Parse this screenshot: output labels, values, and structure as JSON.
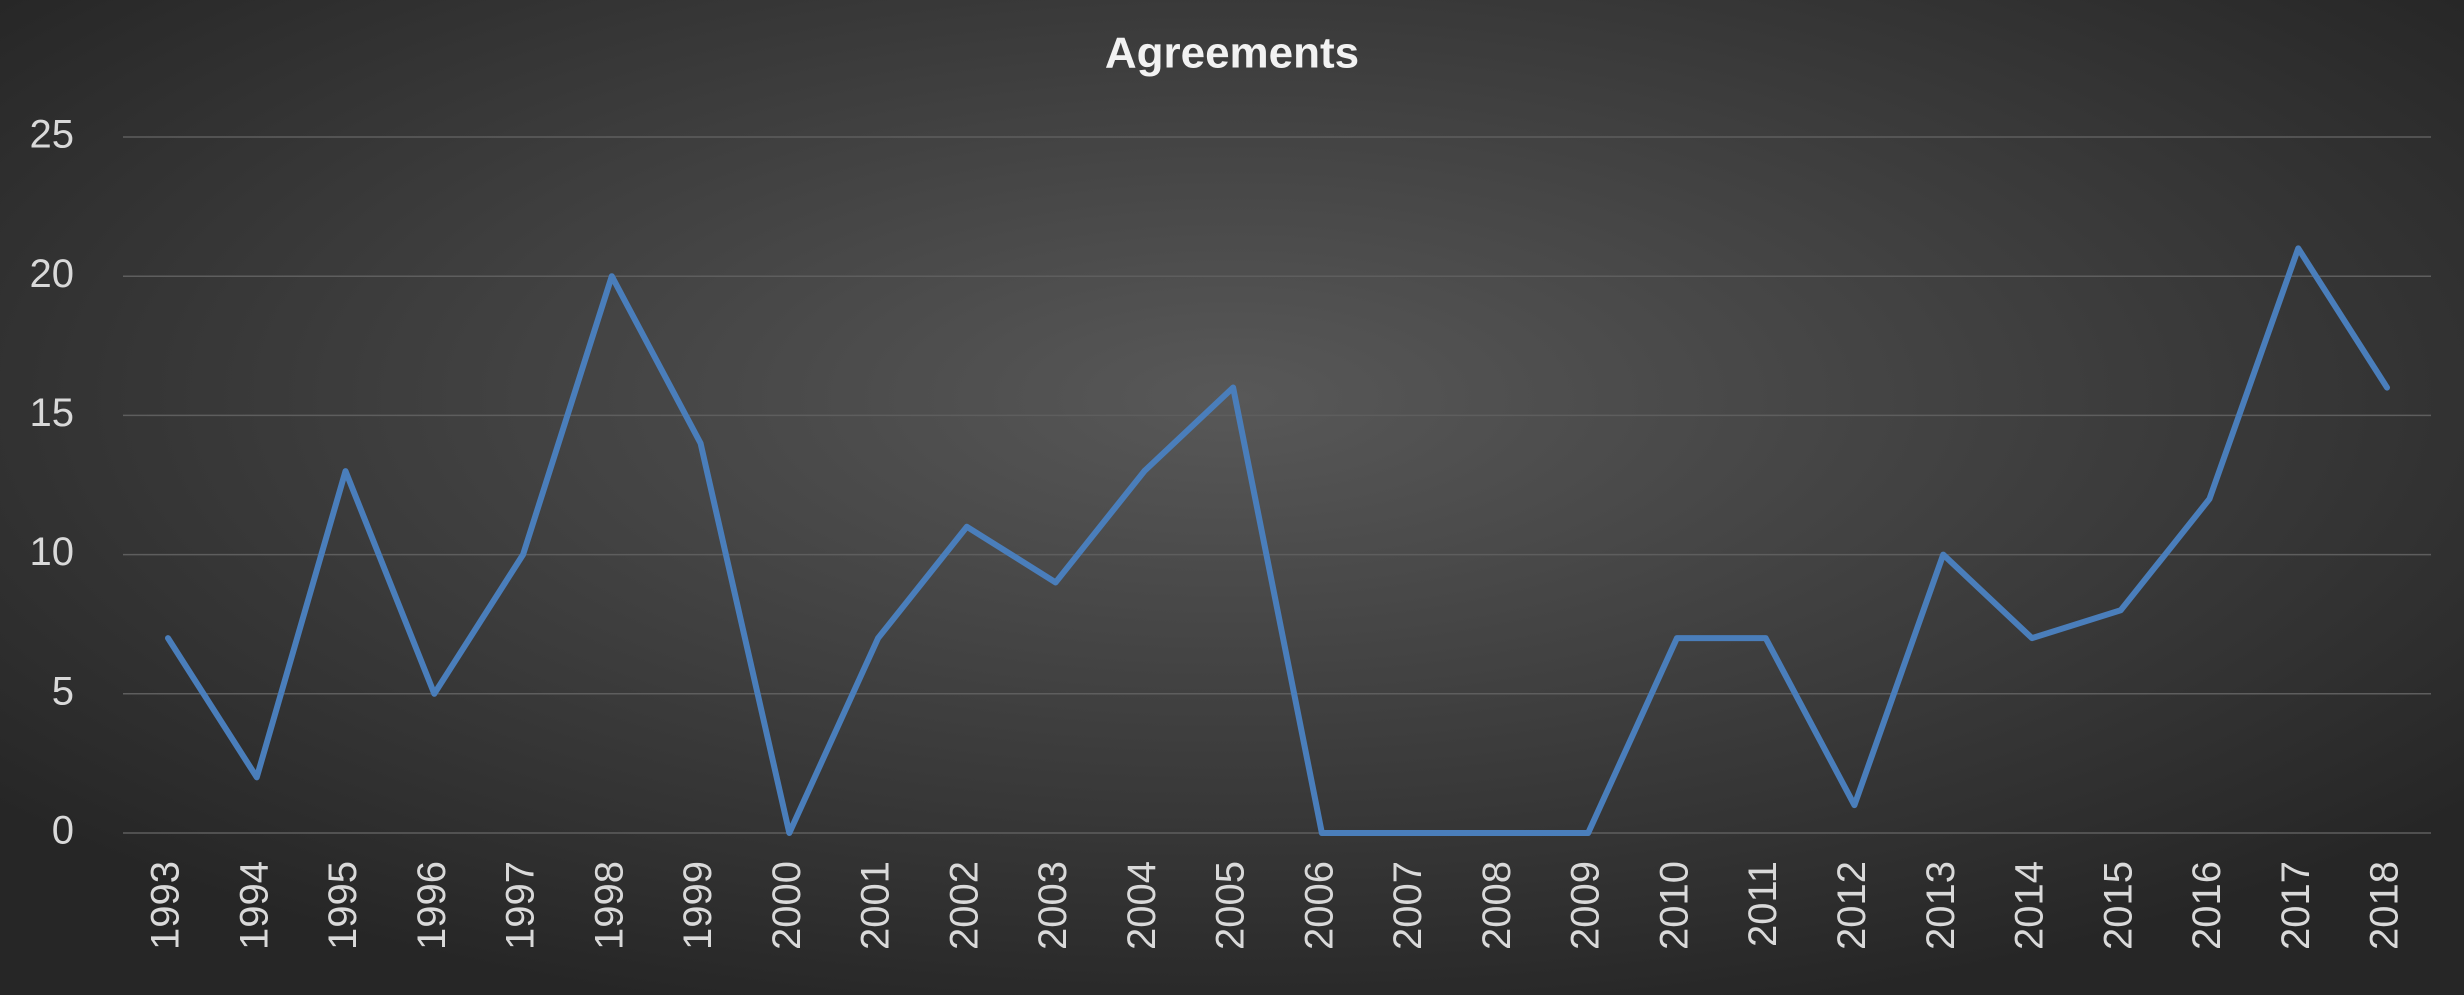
{
  "chart_data": {
    "type": "line",
    "title": "Agreements",
    "categories": [
      "1993",
      "1994",
      "1995",
      "1996",
      "1997",
      "1998",
      "1999",
      "2000",
      "2001",
      "2002",
      "2003",
      "2004",
      "2005",
      "2006",
      "2007",
      "2008",
      "2009",
      "2010",
      "2011",
      "2012",
      "2013",
      "2014",
      "2015",
      "2016",
      "2017",
      "2018"
    ],
    "values": [
      7,
      2,
      13,
      5,
      10,
      20,
      14,
      0,
      7,
      11,
      9,
      13,
      16,
      0,
      0,
      0,
      0,
      7,
      7,
      1,
      10,
      7,
      8,
      12,
      21,
      16
    ],
    "color": "#4a7ebb",
    "ylim": [
      0,
      25
    ],
    "yticks": [
      0,
      5,
      10,
      15,
      20,
      25
    ],
    "grid": true
  }
}
